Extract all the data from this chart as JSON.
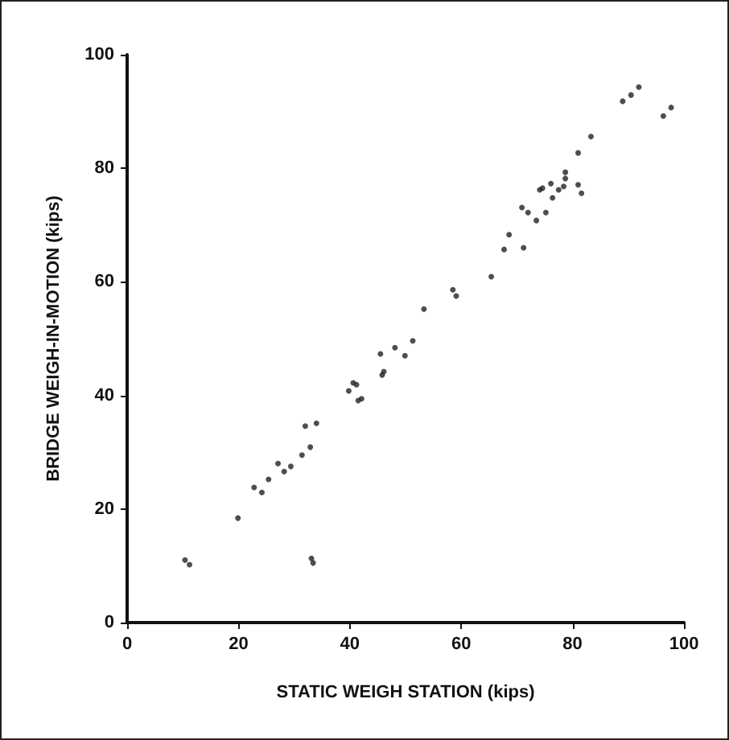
{
  "chart_data": {
    "type": "scatter",
    "xlabel": "STATIC WEIGH STATION (kips)",
    "ylabel": "BRIDGE WEIGH-IN-MOTION (kips)",
    "x": [
      89.0,
      90.5,
      91.9,
      96.3,
      97.7,
      83.3,
      81.0,
      78.7,
      78.7,
      74.6,
      76.1,
      77.5,
      78.4,
      81.0,
      81.6,
      76.4,
      74.1,
      70.9,
      72.0,
      73.5,
      75.2,
      68.6,
      67.7,
      71.2,
      65.4,
      58.5,
      59.1,
      53.3,
      51.3,
      49.9,
      48.1,
      45.5,
      46.1,
      41.2,
      42.1,
      40.6,
      39.8,
      41.5,
      45.8,
      34.0,
      32.0,
      32.9,
      31.4,
      28.2,
      29.4,
      27.1,
      25.4,
      24.2,
      22.8,
      19.9,
      10.4,
      11.2,
      33.1,
      33.4
    ],
    "values": [
      91.8,
      92.9,
      94.3,
      89.2,
      90.7,
      85.6,
      82.7,
      79.3,
      78.2,
      76.5,
      77.3,
      76.2,
      76.8,
      77.1,
      75.6,
      74.8,
      76.2,
      73.1,
      72.2,
      70.8,
      72.2,
      68.3,
      65.7,
      66.0,
      60.9,
      58.6,
      57.5,
      55.2,
      49.6,
      47.0,
      48.4,
      47.3,
      44.2,
      41.9,
      39.4,
      42.2,
      40.8,
      39.1,
      43.6,
      35.1,
      34.6,
      30.9,
      29.5,
      26.6,
      27.5,
      28.0,
      25.2,
      22.9,
      23.8,
      18.4,
      11.0,
      10.2,
      11.3,
      10.5
    ],
    "color": "#222222",
    "marker": "circle",
    "grid": false,
    "xlim": [
      0,
      100
    ],
    "xticks": [
      0,
      20,
      40,
      60,
      80,
      100
    ],
    "ylim": [
      0,
      100
    ],
    "yticks": [
      0,
      20,
      40,
      60,
      80,
      100
    ]
  }
}
